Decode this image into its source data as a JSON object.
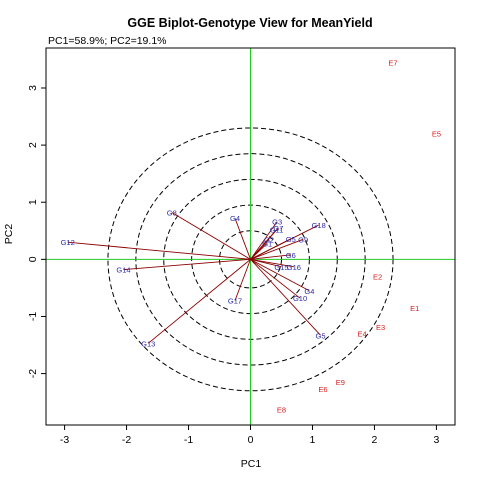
{
  "chart_data": {
    "type": "scatter",
    "title": "GGE Biplot-Genotype View for MeanYield",
    "subtitle": "PC1=58.9%; PC2=19.1%",
    "xlabel": "PC1",
    "ylabel": "PC2",
    "xlim": [
      -3.3,
      3.3
    ],
    "ylim": [
      -2.9,
      3.7
    ],
    "x_ticks": [
      "-3",
      "-2",
      "-1",
      "0",
      "1",
      "2",
      "3"
    ],
    "y_ticks": [
      "-2",
      "-1",
      "0",
      "1",
      "2",
      "3"
    ],
    "circle_radii": [
      0.5,
      0.95,
      1.4,
      1.85,
      2.3
    ],
    "colors": {
      "genotype": "#2a2aa8",
      "environment": "#d42020",
      "vector": "#8b0000",
      "reference_axis": "#22cc22",
      "circle": "#000000"
    },
    "genotypes": [
      {
        "label": "G1",
        "x": 0.27,
        "y": 0.28
      },
      {
        "label": "G2",
        "x": 0.3,
        "y": 0.35
      },
      {
        "label": "G3",
        "x": 0.43,
        "y": 0.66
      },
      {
        "label": "G4",
        "x": -0.25,
        "y": 0.72
      },
      {
        "label": "G5",
        "x": 0.65,
        "y": 0.36
      },
      {
        "label": "G6",
        "x": 0.65,
        "y": 0.08
      },
      {
        "label": "G7",
        "x": 0.45,
        "y": 0.55
      },
      {
        "label": "G8",
        "x": -1.27,
        "y": 0.82
      },
      {
        "label": "G9",
        "x": 0.85,
        "y": 0.35
      },
      {
        "label": "G10",
        "x": 0.8,
        "y": -0.68
      },
      {
        "label": "G11",
        "x": 0.42,
        "y": 0.52
      },
      {
        "label": "G12",
        "x": -2.95,
        "y": 0.3
      },
      {
        "label": "G13",
        "x": -1.65,
        "y": -1.47
      },
      {
        "label": "G14",
        "x": -2.05,
        "y": -0.18
      },
      {
        "label": "G15",
        "x": 0.5,
        "y": -0.13
      },
      {
        "label": "G16",
        "x": 0.7,
        "y": -0.13
      },
      {
        "label": "G17",
        "x": -0.25,
        "y": -0.72
      },
      {
        "label": "G18",
        "x": 1.1,
        "y": 0.6
      },
      {
        "label": "G5",
        "x": 1.13,
        "y": -1.33
      },
      {
        "label": "G4",
        "x": 0.95,
        "y": -0.55
      }
    ],
    "environments": [
      {
        "label": "E1",
        "x": 2.65,
        "y": -0.85
      },
      {
        "label": "E2",
        "x": 2.05,
        "y": -0.3
      },
      {
        "label": "E3",
        "x": 2.1,
        "y": -1.18
      },
      {
        "label": "E4",
        "x": 1.8,
        "y": -1.3
      },
      {
        "label": "E5",
        "x": 3.0,
        "y": 2.2
      },
      {
        "label": "E6",
        "x": 1.17,
        "y": -2.27
      },
      {
        "label": "E7",
        "x": 2.3,
        "y": 3.45
      },
      {
        "label": "E8",
        "x": 0.5,
        "y": -2.63
      },
      {
        "label": "E9",
        "x": 1.45,
        "y": -2.15
      }
    ]
  }
}
